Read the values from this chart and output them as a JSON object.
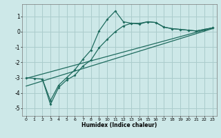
{
  "title": "",
  "xlabel": "Humidex (Indice chaleur)",
  "ylabel": "",
  "bg_color": "#cde8e8",
  "line_color": "#1e6b5e",
  "grid_color": "#aacccc",
  "xlim": [
    -0.5,
    23.5
  ],
  "ylim": [
    -5.5,
    1.8
  ],
  "xticks": [
    0,
    1,
    2,
    3,
    4,
    5,
    6,
    7,
    8,
    9,
    10,
    11,
    12,
    13,
    14,
    15,
    16,
    17,
    18,
    19,
    20,
    21,
    22,
    23
  ],
  "yticks": [
    -5,
    -4,
    -3,
    -2,
    -1,
    0,
    1
  ],
  "curve1_x": [
    0,
    1,
    2,
    3,
    4,
    5,
    6,
    7,
    8,
    9,
    10,
    11,
    12,
    13,
    14,
    15,
    16,
    17,
    18,
    19,
    20,
    21,
    22,
    23
  ],
  "curve1_y": [
    -3.0,
    -3.05,
    -3.1,
    -4.5,
    -3.5,
    -3.0,
    -2.5,
    -1.8,
    -1.2,
    0.05,
    0.8,
    1.35,
    0.65,
    0.55,
    0.5,
    0.65,
    0.6,
    0.3,
    0.2,
    0.15,
    0.1,
    0.05,
    0.15,
    0.25
  ],
  "curve2_x": [
    2,
    3,
    4,
    5,
    6,
    7,
    8,
    9,
    10,
    11,
    12,
    13,
    14,
    15,
    16,
    17,
    18,
    19,
    20,
    21,
    22,
    23
  ],
  "curve2_y": [
    -3.1,
    -4.75,
    -3.65,
    -3.15,
    -2.85,
    -2.25,
    -1.85,
    -1.05,
    -0.5,
    0.0,
    0.38,
    0.55,
    0.55,
    0.65,
    0.6,
    0.3,
    0.2,
    0.15,
    0.1,
    0.05,
    0.15,
    0.25
  ],
  "line1_x": [
    0,
    23
  ],
  "line1_y": [
    -3.05,
    0.25
  ],
  "line2_x": [
    0,
    23
  ],
  "line2_y": [
    -3.55,
    0.2
  ]
}
